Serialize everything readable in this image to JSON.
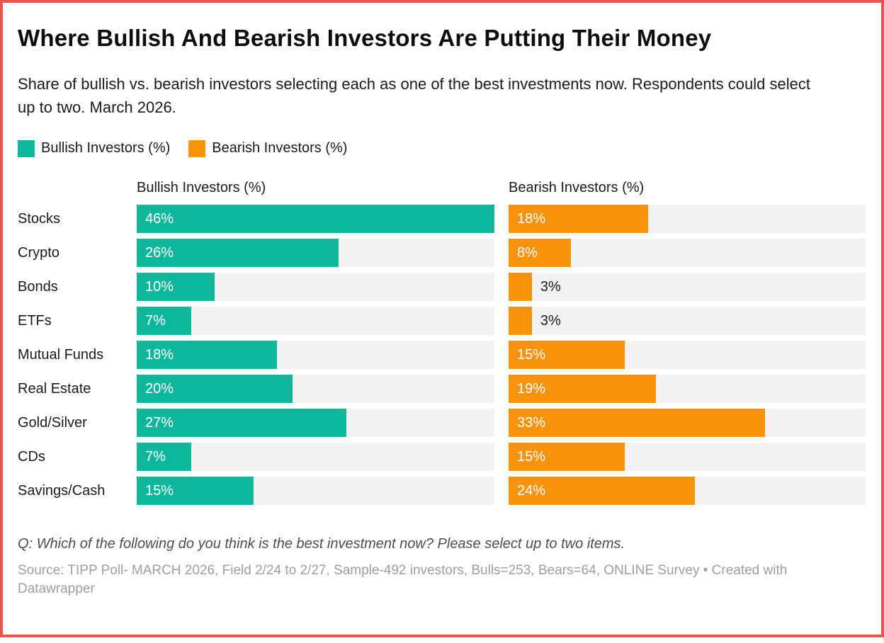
{
  "header": {
    "title": "Where Bullish And Bearish Investors Are Putting Their Money",
    "subtitle": "Share of bullish vs. bearish investors selecting each as one of the best investments now. Respondents could select up to two. March 2026."
  },
  "legend": {
    "items": [
      {
        "label": "Bullish Investors (%)",
        "color": "#0db79b"
      },
      {
        "label": "Bearish Investors (%)",
        "color": "#f8940b"
      }
    ]
  },
  "chart_data": {
    "type": "bar",
    "orientation": "horizontal",
    "layout": "split-columns",
    "title": "Where Bullish And Bearish Investors Are Putting Their Money",
    "categories": [
      "Stocks",
      "Crypto",
      "Bonds",
      "ETFs",
      "Mutual Funds",
      "Real Estate",
      "Gold/Silver",
      "CDs",
      "Savings/Cash"
    ],
    "series": [
      {
        "name": "Bullish Investors (%)",
        "color": "#0db79b",
        "values": [
          46,
          26,
          10,
          7,
          18,
          20,
          27,
          7,
          15
        ],
        "labels": [
          "46%",
          "26%",
          "10%",
          "7%",
          "18%",
          "20%",
          "27%",
          "7%",
          "15%"
        ]
      },
      {
        "name": "Bearish Investors (%)",
        "color": "#f8940b",
        "values": [
          18,
          8,
          3,
          3,
          15,
          19,
          33,
          15,
          24
        ],
        "labels": [
          "18%",
          "8%",
          "3%",
          "3%",
          "15%",
          "19%",
          "33%",
          "15%",
          "24%"
        ]
      }
    ],
    "xlim": [
      0,
      46
    ],
    "track_color": "#f2f2f2",
    "grid": false,
    "legend_position": "top",
    "value_labels": "inside-start, outside for values under 5"
  },
  "footer": {
    "question": "Q: Which of the following do you think is the best investment now? Please select up to two items.",
    "source": "Source: TIPP Poll- MARCH 2026, Field 2/24 to 2/27, Sample-492 investors, Bulls=253, Bears=64, ONLINE Survey • Created with Datawrapper"
  },
  "colors": {
    "frame_border": "#e5574b",
    "bullish": "#0db79b",
    "bearish": "#f8940b",
    "bar_track": "#f2f2f2",
    "text": "#1a1a1a",
    "muted_text": "#9e9e9e"
  }
}
